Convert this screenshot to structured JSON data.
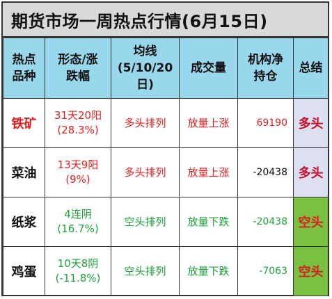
{
  "title": "期货市场一周热点行情(6月15日)",
  "headers": {
    "col1_line1": "热点",
    "col1_line2": "品种",
    "col2_line1": "形态/涨",
    "col2_line2": "跌幅",
    "col3_line1": "均线",
    "col3_line2": "(5/10/20",
    "col3_line3": "日)",
    "col4": "成交量",
    "col5_line1": "机构净",
    "col5_line2": "持仓",
    "col6": "总结"
  },
  "rows": [
    {
      "name": "铁矿",
      "pattern_line1": "31天20阳",
      "pattern_line2": "(28.3%)",
      "ma": "多头排列",
      "volume": "放量上涨",
      "position": "69190",
      "summary": "多头"
    },
    {
      "name": "菜油",
      "pattern_line1": "13天9阳",
      "pattern_line2": "(9%)",
      "ma": "多头排列",
      "volume": "放量上涨",
      "position": "-20438",
      "summary": "多头"
    },
    {
      "name": "纸浆",
      "pattern_line1": "4连阴",
      "pattern_line2": "(16.7%)",
      "ma": "空头排列",
      "volume": "放量下跌",
      "position": "-20438",
      "summary": "空头"
    },
    {
      "name": "鸡蛋",
      "pattern_line1": "10天8阴",
      "pattern_line2": "(-11.8%)",
      "ma": "空头排列",
      "volume": "放量下跌",
      "position": "-7063",
      "summary": "空头"
    }
  ],
  "colors": {
    "header_bg": "#99d7ec",
    "title_bg": "#d9d9d9",
    "bull_summary_bg": "#dde0f0",
    "bear_summary_bg": "#7ac142",
    "bull_text": "#e02020",
    "bear_text": "#1ca13a"
  }
}
